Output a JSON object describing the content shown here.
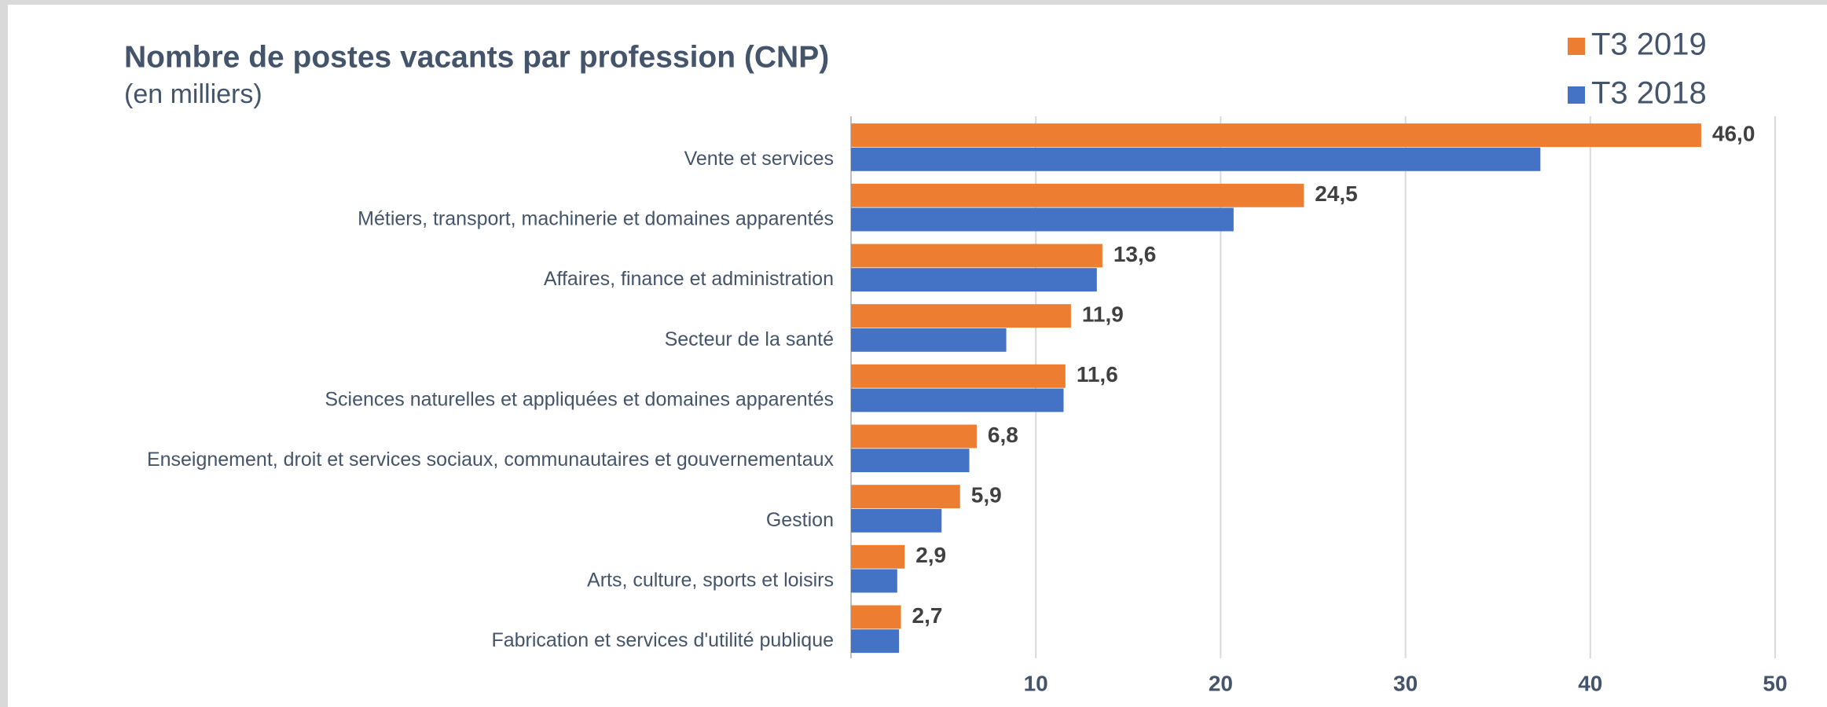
{
  "chart_data": {
    "type": "hbar",
    "title": "Nombre de postes vacants par profession (CNP)",
    "subtitle": "(en milliers)",
    "categories": [
      "Vente et services",
      "Métiers, transport, machinerie et domaines apparentés",
      "Affaires, finance et administration",
      "Secteur de la santé",
      "Sciences naturelles et appliquées et domaines apparentés",
      "Enseignement, droit et services sociaux, communautaires et gouvernementaux",
      "Gestion",
      "Arts, culture, sports et loisirs",
      "Fabrication et services d'utilité publique"
    ],
    "series": [
      {
        "name": "T3 2019",
        "color": "#ed7d31",
        "values": [
          46.0,
          24.5,
          13.6,
          11.9,
          11.6,
          6.8,
          5.9,
          2.9,
          2.7
        ],
        "value_labels": [
          "46,0",
          "24,5",
          "13,6",
          "11,9",
          "11,6",
          "6,8",
          "5,9",
          "2,9",
          "2,7"
        ]
      },
      {
        "name": "T3 2018",
        "color": "#4472c4",
        "values": [
          37.3,
          20.7,
          13.3,
          8.4,
          11.5,
          6.4,
          4.9,
          2.5,
          2.6
        ]
      }
    ],
    "xlim": [
      0,
      50
    ],
    "xticks": [
      10,
      20,
      30,
      40,
      50
    ],
    "grid": true
  }
}
